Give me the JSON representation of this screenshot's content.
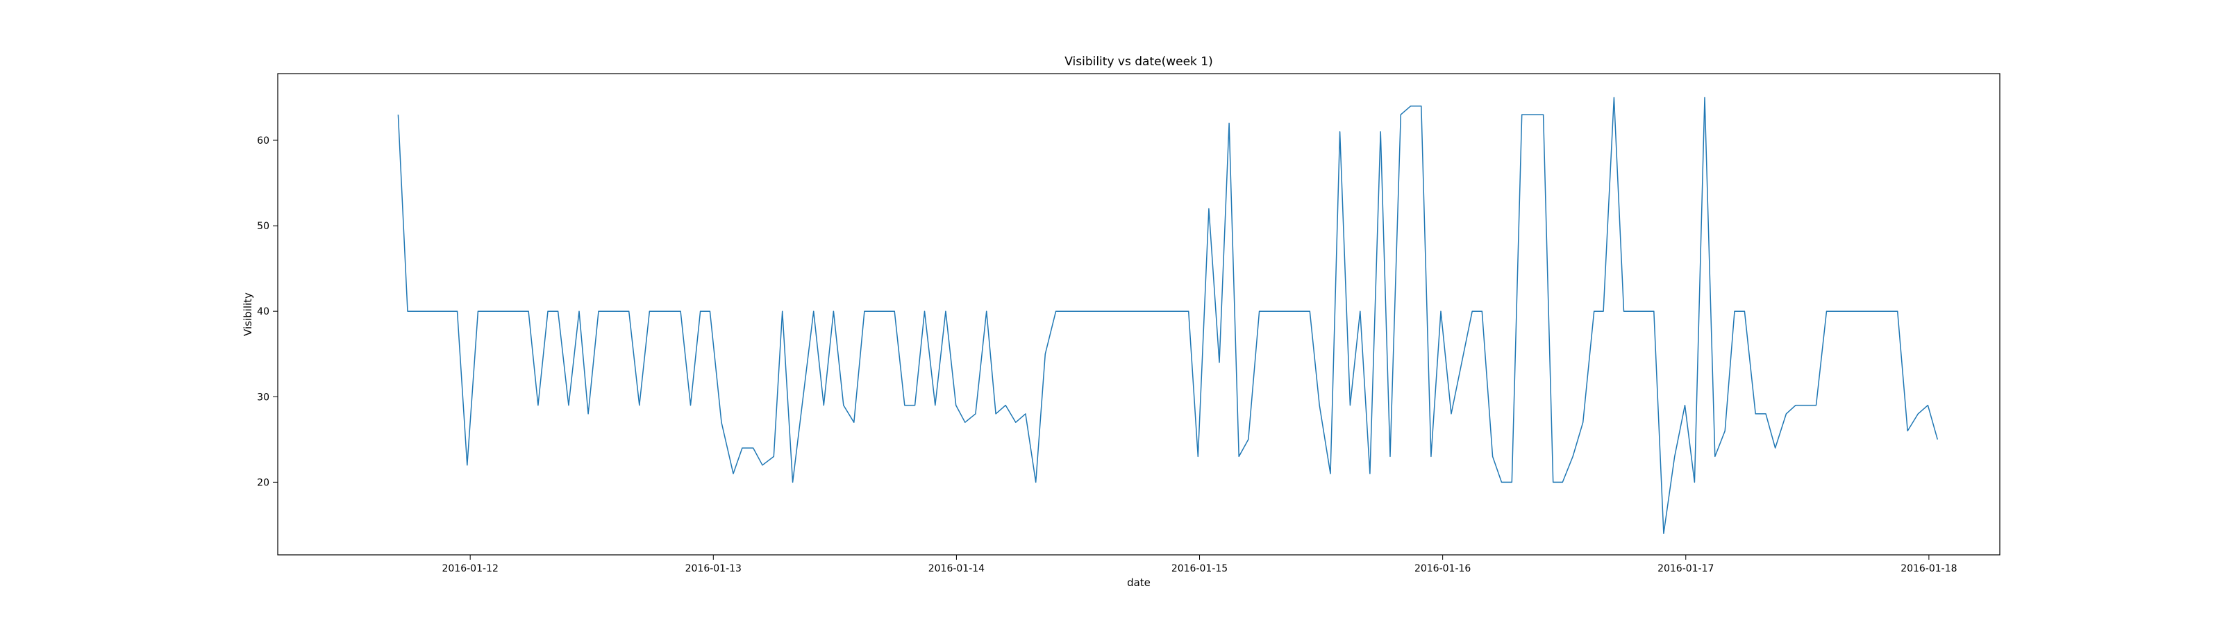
{
  "chart_data": {
    "type": "line",
    "title": "Visibility vs date(week 1)",
    "xlabel": "date",
    "ylabel": "Visibility",
    "grid": false,
    "x_ticks": [
      "2016-01-12",
      "2016-01-13",
      "2016-01-14",
      "2016-01-15",
      "2016-01-16",
      "2016-01-17",
      "2016-01-18"
    ],
    "y_ticks": [
      20,
      30,
      40,
      50,
      60
    ],
    "xlim": [
      "2016-01-11 05:00",
      "2016-01-18 07:00"
    ],
    "ylim": [
      11.5,
      67.8
    ],
    "series": [
      {
        "color": "#1f77b4",
        "points": [
          [
            "2016-01-11 16:53",
            63
          ],
          [
            "2016-01-11 17:49",
            40
          ],
          [
            "2016-01-11 22:43",
            40
          ],
          [
            "2016-01-11 23:42",
            22
          ],
          [
            "2016-01-12 00:46",
            40
          ],
          [
            "2016-01-12 05:45",
            40
          ],
          [
            "2016-01-12 06:42",
            29
          ],
          [
            "2016-01-12 07:40",
            40
          ],
          [
            "2016-01-12 08:40",
            40
          ],
          [
            "2016-01-12 09:43",
            29
          ],
          [
            "2016-01-12 10:45",
            40
          ],
          [
            "2016-01-12 11:39",
            28
          ],
          [
            "2016-01-12 12:40",
            40
          ],
          [
            "2016-01-12 15:40",
            40
          ],
          [
            "2016-01-12 16:42",
            29
          ],
          [
            "2016-01-12 17:42",
            40
          ],
          [
            "2016-01-12 20:46",
            40
          ],
          [
            "2016-01-12 21:45",
            29
          ],
          [
            "2016-01-12 22:43",
            40
          ],
          [
            "2016-01-12 23:40",
            40
          ],
          [
            "2016-01-13 00:48",
            27
          ],
          [
            "2016-01-13 01:58",
            21
          ],
          [
            "2016-01-13 02:51",
            24
          ],
          [
            "2016-01-13 03:56",
            24
          ],
          [
            "2016-01-13 04:51",
            22
          ],
          [
            "2016-01-13 05:58",
            23
          ],
          [
            "2016-01-13 06:49",
            40
          ],
          [
            "2016-01-13 07:50",
            20
          ],
          [
            "2016-01-13 09:54",
            40
          ],
          [
            "2016-01-13 10:54",
            29
          ],
          [
            "2016-01-13 11:52",
            40
          ],
          [
            "2016-01-13 12:51",
            29
          ],
          [
            "2016-01-13 13:53",
            27
          ],
          [
            "2016-01-13 14:55",
            40
          ],
          [
            "2016-01-13 17:53",
            40
          ],
          [
            "2016-01-13 18:53",
            29
          ],
          [
            "2016-01-13 19:54",
            29
          ],
          [
            "2016-01-13 20:51",
            40
          ],
          [
            "2016-01-13 21:54",
            29
          ],
          [
            "2016-01-13 22:56",
            40
          ],
          [
            "2016-01-13 23:57",
            29
          ],
          [
            "2016-01-14 00:51",
            27
          ],
          [
            "2016-01-14 01:53",
            28
          ],
          [
            "2016-01-14 02:58",
            40
          ],
          [
            "2016-01-14 03:53",
            28
          ],
          [
            "2016-01-14 04:51",
            29
          ],
          [
            "2016-01-14 05:51",
            27
          ],
          [
            "2016-01-14 06:49",
            28
          ],
          [
            "2016-01-14 07:50",
            20
          ],
          [
            "2016-01-14 08:46",
            35
          ],
          [
            "2016-01-14 09:49",
            40
          ],
          [
            "2016-01-14 22:55",
            40
          ],
          [
            "2016-01-14 23:51",
            23
          ],
          [
            "2016-01-15 00:55",
            52
          ],
          [
            "2016-01-15 01:57",
            34
          ],
          [
            "2016-01-15 02:55",
            62
          ],
          [
            "2016-01-15 03:53",
            23
          ],
          [
            "2016-01-15 04:49",
            25
          ],
          [
            "2016-01-15 05:54",
            40
          ],
          [
            "2016-01-15 10:53",
            40
          ],
          [
            "2016-01-15 11:50",
            29
          ],
          [
            "2016-01-15 12:55",
            21
          ],
          [
            "2016-01-15 13:51",
            61
          ],
          [
            "2016-01-15 14:52",
            29
          ],
          [
            "2016-01-15 15:51",
            40
          ],
          [
            "2016-01-15 16:49",
            21
          ],
          [
            "2016-01-15 17:52",
            61
          ],
          [
            "2016-01-15 18:49",
            23
          ],
          [
            "2016-01-15 19:52",
            63
          ],
          [
            "2016-01-15 20:50",
            64
          ],
          [
            "2016-01-15 21:53",
            64
          ],
          [
            "2016-01-15 22:51",
            23
          ],
          [
            "2016-01-15 23:49",
            40
          ],
          [
            "2016-01-16 00:51",
            28
          ],
          [
            "2016-01-16 02:55",
            40
          ],
          [
            "2016-01-16 03:53",
            40
          ],
          [
            "2016-01-16 04:56",
            23
          ],
          [
            "2016-01-16 05:49",
            20
          ],
          [
            "2016-01-16 06:50",
            20
          ],
          [
            "2016-01-16 07:49",
            63
          ],
          [
            "2016-01-16 09:56",
            63
          ],
          [
            "2016-01-16 10:54",
            20
          ],
          [
            "2016-01-16 11:50",
            20
          ],
          [
            "2016-01-16 12:51",
            23
          ],
          [
            "2016-01-16 13:51",
            27
          ],
          [
            "2016-01-16 14:57",
            40
          ],
          [
            "2016-01-16 15:52",
            40
          ],
          [
            "2016-01-16 16:55",
            65
          ],
          [
            "2016-01-16 17:53",
            40
          ],
          [
            "2016-01-16 20:51",
            40
          ],
          [
            "2016-01-16 21:49",
            14
          ],
          [
            "2016-01-16 22:54",
            23
          ],
          [
            "2016-01-16 23:55",
            29
          ],
          [
            "2016-01-17 00:52",
            20
          ],
          [
            "2016-01-17 01:52",
            65
          ],
          [
            "2016-01-17 02:53",
            23
          ],
          [
            "2016-01-17 03:52",
            26
          ],
          [
            "2016-01-17 04:49",
            40
          ],
          [
            "2016-01-17 05:48",
            40
          ],
          [
            "2016-01-17 06:53",
            28
          ],
          [
            "2016-01-17 07:54",
            28
          ],
          [
            "2016-01-17 08:50",
            24
          ],
          [
            "2016-01-17 09:55",
            28
          ],
          [
            "2016-01-17 10:51",
            29
          ],
          [
            "2016-01-17 12:52",
            29
          ],
          [
            "2016-01-17 13:54",
            40
          ],
          [
            "2016-01-17 20:54",
            40
          ],
          [
            "2016-01-17 21:54",
            26
          ],
          [
            "2016-01-17 22:56",
            28
          ],
          [
            "2016-01-17 23:54",
            29
          ],
          [
            "2016-01-18 00:51",
            25
          ]
        ]
      }
    ]
  }
}
